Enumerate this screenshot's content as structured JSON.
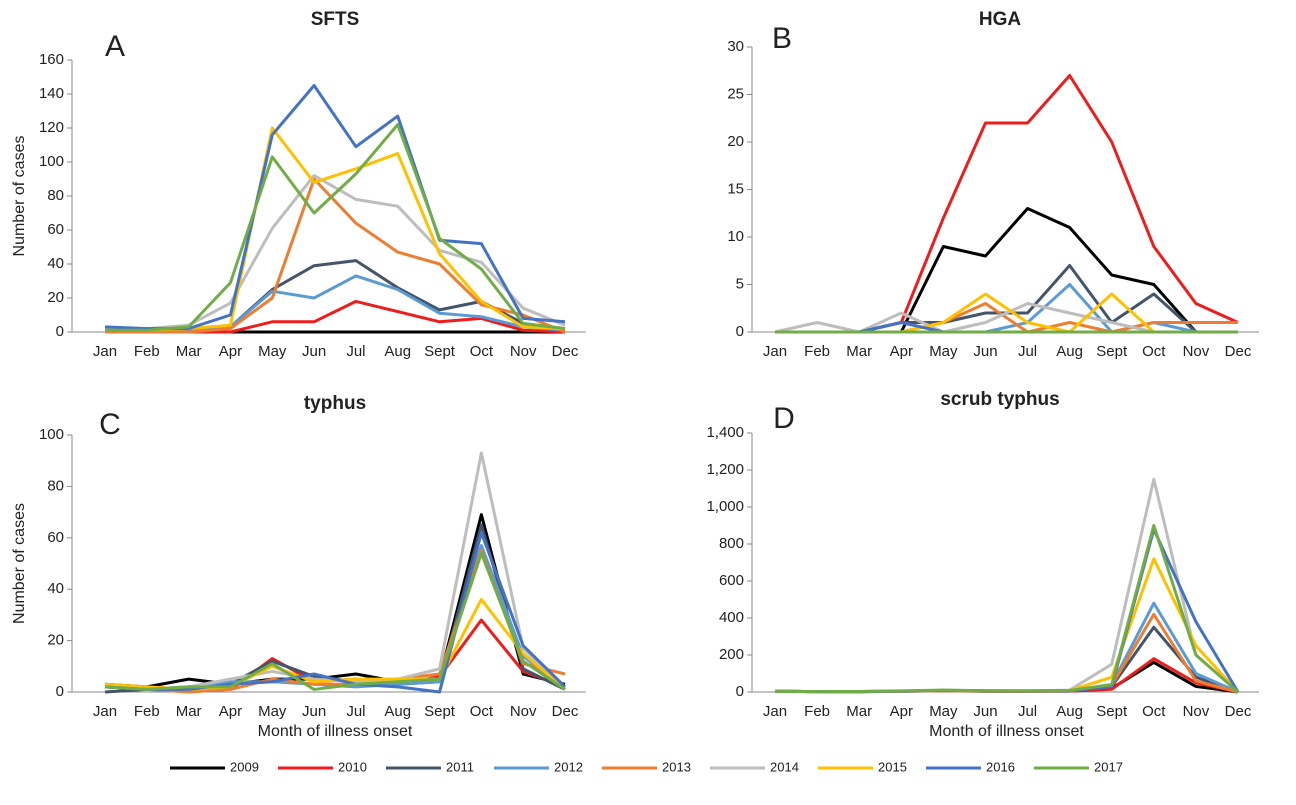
{
  "chart_data": [
    {
      "type": "line",
      "title": "SFTS",
      "panel_label": "A",
      "y_label": "Number of cases",
      "categories": [
        "Jan",
        "Feb",
        "Mar",
        "Apr",
        "May",
        "Jun",
        "Jul",
        "Aug",
        "Sept",
        "Oct",
        "Nov",
        "Dec"
      ],
      "ylim": [
        0,
        160
      ],
      "yticks": [
        0,
        20,
        40,
        60,
        80,
        100,
        120,
        140,
        160
      ],
      "series": [
        {
          "name": "2009",
          "color": "#000000",
          "values": [
            0,
            0,
            0,
            0,
            0,
            0,
            0,
            0,
            0,
            0,
            0,
            0
          ]
        },
        {
          "name": "2010",
          "color": "#ee1c1c",
          "values": [
            0,
            0,
            0,
            0,
            6,
            6,
            18,
            12,
            6,
            8,
            1,
            0
          ]
        },
        {
          "name": "2011",
          "color": "#44546a",
          "values": [
            1,
            1,
            2,
            3,
            25,
            39,
            42,
            26,
            13,
            18,
            5,
            2
          ]
        },
        {
          "name": "2012",
          "color": "#5b9bd5",
          "values": [
            1,
            1,
            1,
            3,
            24,
            20,
            33,
            25,
            11,
            9,
            3,
            1
          ]
        },
        {
          "name": "2013",
          "color": "#ed7d31",
          "values": [
            0,
            0,
            0,
            2,
            20,
            90,
            64,
            47,
            40,
            16,
            10,
            0
          ]
        },
        {
          "name": "2014",
          "color": "#bdbdbd",
          "values": [
            2,
            2,
            4,
            17,
            61,
            92,
            78,
            74,
            48,
            41,
            14,
            4
          ]
        },
        {
          "name": "2015",
          "color": "#ffc000",
          "values": [
            1,
            1,
            2,
            4,
            120,
            88,
            96,
            105,
            46,
            18,
            3,
            2
          ]
        },
        {
          "name": "2016",
          "color": "#4472c4",
          "values": [
            3,
            2,
            2,
            10,
            116,
            145,
            109,
            127,
            54,
            52,
            8,
            6
          ]
        },
        {
          "name": "2017",
          "color": "#70ad47",
          "values": [
            1,
            1,
            3,
            29,
            103,
            70,
            93,
            122,
            55,
            37,
            5,
            2
          ]
        }
      ]
    },
    {
      "type": "line",
      "title": "HGA",
      "panel_label": "B",
      "categories": [
        "Jan",
        "Feb",
        "Mar",
        "Apr",
        "May",
        "Jun",
        "Jul",
        "Aug",
        "Sept",
        "Oct",
        "Nov",
        "Dec"
      ],
      "ylim": [
        0,
        30
      ],
      "yticks": [
        0,
        5,
        10,
        15,
        20,
        25,
        30
      ],
      "series": [
        {
          "name": "2009",
          "color": "#000000",
          "values": [
            0,
            0,
            0,
            0,
            9,
            8,
            13,
            11,
            6,
            5,
            0,
            0
          ]
        },
        {
          "name": "2010",
          "color": "#ee1c1c",
          "values": [
            0,
            0,
            0,
            1,
            12,
            22,
            22,
            27,
            20,
            9,
            3,
            1
          ]
        },
        {
          "name": "2011",
          "color": "#44546a",
          "values": [
            0,
            0,
            0,
            1,
            1,
            2,
            2,
            7,
            1,
            4,
            0,
            0
          ]
        },
        {
          "name": "2012",
          "color": "#5b9bd5",
          "values": [
            0,
            0,
            0,
            0,
            0,
            0,
            1,
            5,
            0,
            1,
            0,
            0
          ]
        },
        {
          "name": "2013",
          "color": "#ed7d31",
          "values": [
            0,
            0,
            0,
            0,
            1,
            3,
            0,
            1,
            0,
            1,
            1,
            1
          ]
        },
        {
          "name": "2014",
          "color": "#bdbdbd",
          "values": [
            0,
            1,
            0,
            2,
            0,
            1,
            3,
            2,
            1,
            0,
            0,
            0
          ]
        },
        {
          "name": "2015",
          "color": "#ffc000",
          "values": [
            0,
            0,
            0,
            0,
            1,
            4,
            1,
            0,
            4,
            0,
            0,
            0
          ]
        },
        {
          "name": "2016",
          "color": "#4472c4",
          "values": [
            0,
            0,
            0,
            1,
            0,
            0,
            0,
            0,
            0,
            0,
            0,
            0
          ]
        },
        {
          "name": "2017",
          "color": "#70ad47",
          "values": [
            0,
            0,
            0,
            0,
            0,
            0,
            0,
            0,
            0,
            0,
            0,
            0
          ]
        }
      ]
    },
    {
      "type": "line",
      "title": "typhus",
      "panel_label": "C",
      "y_label": "Number of cases",
      "x_label": "Month of illness onset",
      "categories": [
        "Jan",
        "Feb",
        "Mar",
        "Apr",
        "May",
        "Jun",
        "Jul",
        "Aug",
        "Sept",
        "Oct",
        "Nov",
        "Dec"
      ],
      "ylim": [
        0,
        100
      ],
      "yticks": [
        0,
        20,
        40,
        60,
        80,
        100
      ],
      "series": [
        {
          "name": "2009",
          "color": "#000000",
          "values": [
            3,
            2,
            5,
            3,
            5,
            5,
            7,
            4,
            5,
            69,
            7,
            3
          ]
        },
        {
          "name": "2010",
          "color": "#ee1c1c",
          "values": [
            2,
            2,
            1,
            1,
            13,
            4,
            5,
            3,
            6,
            28,
            8,
            2
          ]
        },
        {
          "name": "2011",
          "color": "#44546a",
          "values": [
            0,
            1,
            2,
            3,
            12,
            6,
            4,
            3,
            4,
            65,
            9,
            1
          ]
        },
        {
          "name": "2012",
          "color": "#5b9bd5",
          "values": [
            2,
            1,
            2,
            4,
            4,
            3,
            2,
            3,
            4,
            57,
            14,
            1
          ]
        },
        {
          "name": "2013",
          "color": "#ed7d31",
          "values": [
            2,
            1,
            0,
            1,
            5,
            3,
            3,
            5,
            7,
            55,
            11,
            7
          ]
        },
        {
          "name": "2014",
          "color": "#bdbdbd",
          "values": [
            3,
            1,
            2,
            5,
            8,
            5,
            4,
            5,
            9,
            93,
            17,
            1
          ]
        },
        {
          "name": "2015",
          "color": "#ffc000",
          "values": [
            3,
            2,
            1,
            2,
            10,
            4,
            5,
            5,
            5,
            36,
            15,
            1
          ]
        },
        {
          "name": "2016",
          "color": "#4472c4",
          "values": [
            2,
            1,
            1,
            3,
            4,
            7,
            3,
            2,
            0,
            62,
            18,
            2
          ]
        },
        {
          "name": "2017",
          "color": "#70ad47",
          "values": [
            2,
            1,
            2,
            2,
            11,
            1,
            3,
            4,
            5,
            54,
            12,
            1
          ]
        }
      ]
    },
    {
      "type": "line",
      "title": "scrub typhus",
      "panel_label": "D",
      "x_label": "Month of illness onset",
      "categories": [
        "Jan",
        "Feb",
        "Mar",
        "Apr",
        "May",
        "Jun",
        "Jul",
        "Aug",
        "Sept",
        "Oct",
        "Nov",
        "Dec"
      ],
      "ylim": [
        0,
        1400
      ],
      "yticks": [
        0,
        200,
        400,
        600,
        800,
        {
          "value": 1000,
          "label": "1,000"
        },
        {
          "value": 1200,
          "label": "1,200"
        },
        {
          "value": 1400,
          "label": "1,400"
        }
      ],
      "series": [
        {
          "name": "2009",
          "color": "#000000",
          "values": [
            5,
            2,
            2,
            5,
            8,
            5,
            5,
            5,
            20,
            160,
            30,
            0
          ]
        },
        {
          "name": "2010",
          "color": "#ee1c1c",
          "values": [
            3,
            2,
            2,
            4,
            6,
            4,
            4,
            5,
            15,
            180,
            50,
            0
          ]
        },
        {
          "name": "2011",
          "color": "#44546a",
          "values": [
            4,
            2,
            2,
            4,
            7,
            5,
            5,
            6,
            30,
            350,
            80,
            0
          ]
        },
        {
          "name": "2012",
          "color": "#5b9bd5",
          "values": [
            4,
            2,
            2,
            4,
            8,
            6,
            5,
            6,
            40,
            480,
            100,
            0
          ]
        },
        {
          "name": "2013",
          "color": "#ed7d31",
          "values": [
            3,
            2,
            2,
            4,
            7,
            5,
            5,
            6,
            35,
            420,
            60,
            0
          ]
        },
        {
          "name": "2014",
          "color": "#bdbdbd",
          "values": [
            4,
            2,
            3,
            5,
            10,
            7,
            6,
            10,
            150,
            1150,
            200,
            0
          ]
        },
        {
          "name": "2015",
          "color": "#ffc000",
          "values": [
            4,
            2,
            3,
            5,
            9,
            6,
            6,
            8,
            80,
            720,
            250,
            0
          ]
        },
        {
          "name": "2016",
          "color": "#4472c4",
          "values": [
            4,
            2,
            2,
            5,
            9,
            6,
            6,
            7,
            30,
            880,
            380,
            0
          ]
        },
        {
          "name": "2017",
          "color": "#70ad47",
          "values": [
            4,
            2,
            3,
            6,
            10,
            7,
            6,
            8,
            40,
            900,
            200,
            0
          ]
        }
      ]
    }
  ]
}
